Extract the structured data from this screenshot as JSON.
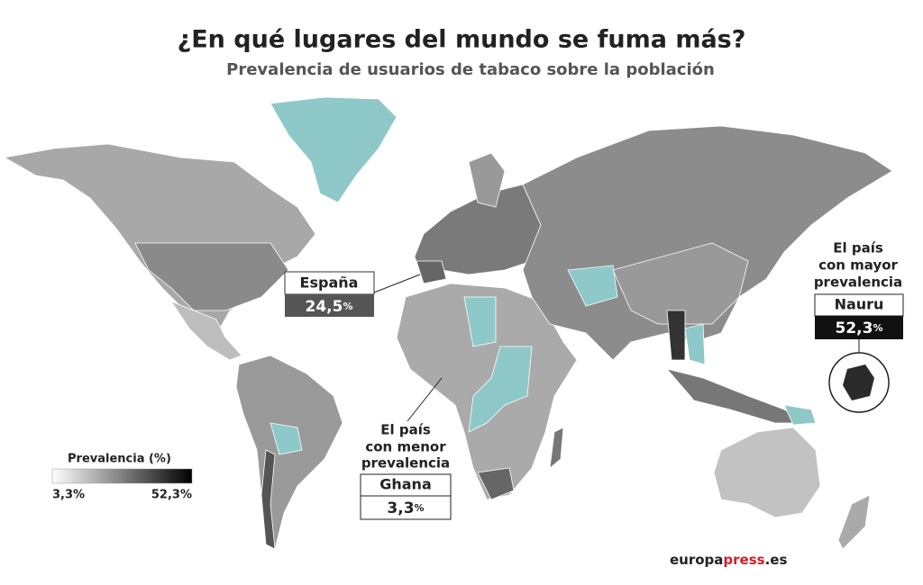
{
  "header": {
    "title": "¿En qué lugares del mundo se fuma más?",
    "subtitle": "Prevalencia de usuarios de tabaco sobre la población"
  },
  "callouts": [
    {
      "label": "España",
      "value": "24,5",
      "unit": "%"
    },
    {
      "lead": [
        "El país",
        "con mayor",
        "prevalencia"
      ],
      "label": "Nauru",
      "value": "52,3",
      "unit": "%"
    },
    {
      "lead": [
        "El país",
        "con menor",
        "prevalencia"
      ],
      "label": "Ghana",
      "value": "3,3",
      "unit": "%"
    }
  ],
  "legend": {
    "title": "Prevalencia (%)",
    "min": "3,3%",
    "max": "52,3%"
  },
  "source": {
    "prefix": "europa",
    "highlight": "press",
    "suffix": ".es"
  }
}
